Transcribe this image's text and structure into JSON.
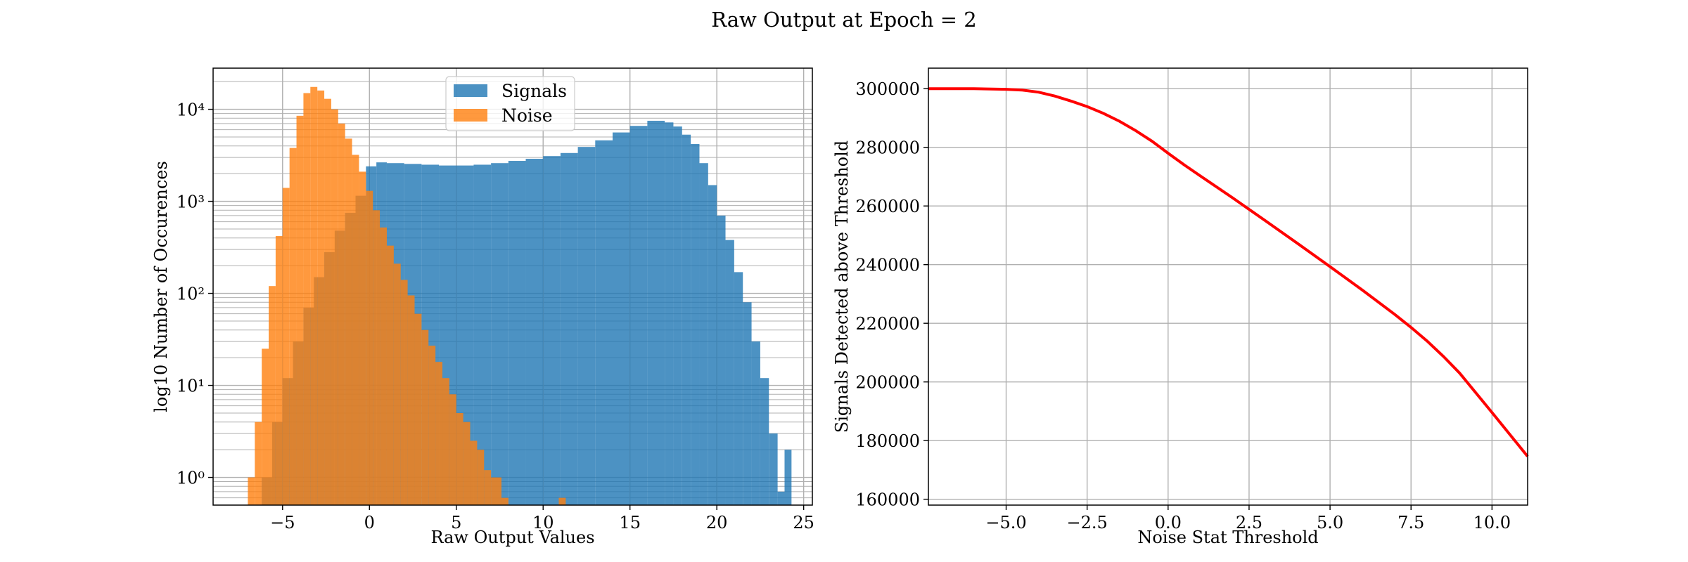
{
  "figure": {
    "title": "Raw Output at Epoch = 2"
  },
  "chart_data": [
    {
      "type": "bar",
      "subtype": "histogram",
      "yscale": "log",
      "xlabel": "Raw Output Values",
      "ylabel": "log10 Number of Occurences",
      "xlim": [
        -9,
        25.5
      ],
      "ylim": [
        0.5,
        28000
      ],
      "xticks": [
        -5,
        0,
        5,
        10,
        15,
        20,
        25
      ],
      "xtick_labels": [
        "−5",
        "0",
        "5",
        "10",
        "15",
        "20",
        "25"
      ],
      "yticks": [
        1,
        10,
        100,
        1000,
        10000
      ],
      "ytick_labels": [
        "10⁰",
        "10¹",
        "10²",
        "10³",
        "10⁴"
      ],
      "grid": true,
      "legend_position": "top-center",
      "series": [
        {
          "name": "Signals",
          "color": "#1f77b4",
          "alpha": 0.8,
          "bins": [
            [
              -6.2,
              1
            ],
            [
              -5.6,
              4
            ],
            [
              -5.0,
              12
            ],
            [
              -4.4,
              30
            ],
            [
              -3.8,
              70
            ],
            [
              -3.2,
              150
            ],
            [
              -2.6,
              280
            ],
            [
              -2.0,
              480
            ],
            [
              -1.4,
              750
            ],
            [
              -0.8,
              1150
            ],
            [
              -0.2,
              2400
            ],
            [
              0.4,
              2650
            ],
            [
              1.0,
              2600
            ],
            [
              2.0,
              2550
            ],
            [
              3.0,
              2500
            ],
            [
              4.0,
              2450
            ],
            [
              5.0,
              2450
            ],
            [
              6.0,
              2500
            ],
            [
              7.0,
              2600
            ],
            [
              8.0,
              2750
            ],
            [
              9.0,
              2900
            ],
            [
              10.0,
              3100
            ],
            [
              11.0,
              3350
            ],
            [
              12.0,
              3900
            ],
            [
              13.0,
              4600
            ],
            [
              14.0,
              5600
            ],
            [
              15.0,
              6600
            ],
            [
              16.0,
              7500
            ],
            [
              17.0,
              7200
            ],
            [
              17.5,
              6500
            ],
            [
              18.0,
              5300
            ],
            [
              18.5,
              4200
            ],
            [
              19.0,
              2600
            ],
            [
              19.5,
              1500
            ],
            [
              20.0,
              700
            ],
            [
              20.5,
              380
            ],
            [
              21.0,
              170
            ],
            [
              21.5,
              80
            ],
            [
              22.0,
              30
            ],
            [
              22.5,
              12
            ],
            [
              23.0,
              3
            ],
            [
              23.5,
              0.7
            ],
            [
              23.9,
              2
            ]
          ]
        },
        {
          "name": "Noise",
          "color": "#ff7f0e",
          "alpha": 0.8,
          "bins": [
            [
              -7.0,
              1
            ],
            [
              -6.6,
              4
            ],
            [
              -6.2,
              25
            ],
            [
              -5.8,
              120
            ],
            [
              -5.4,
              420
            ],
            [
              -5.0,
              1400
            ],
            [
              -4.6,
              3800
            ],
            [
              -4.2,
              8500
            ],
            [
              -3.8,
              15000
            ],
            [
              -3.4,
              17500
            ],
            [
              -3.0,
              16000
            ],
            [
              -2.6,
              13000
            ],
            [
              -2.2,
              10000
            ],
            [
              -1.8,
              7000
            ],
            [
              -1.4,
              4800
            ],
            [
              -1.0,
              3200
            ],
            [
              -0.6,
              2100
            ],
            [
              -0.2,
              1300
            ],
            [
              0.2,
              800
            ],
            [
              0.6,
              520
            ],
            [
              1.0,
              330
            ],
            [
              1.4,
              210
            ],
            [
              1.8,
              140
            ],
            [
              2.2,
              95
            ],
            [
              2.6,
              60
            ],
            [
              3.0,
              40
            ],
            [
              3.4,
              27
            ],
            [
              3.8,
              18
            ],
            [
              4.2,
              12
            ],
            [
              4.6,
              8
            ],
            [
              5.0,
              5
            ],
            [
              5.4,
              4
            ],
            [
              5.8,
              2.5
            ],
            [
              6.2,
              2
            ],
            [
              6.6,
              1.2
            ],
            [
              7.0,
              1
            ],
            [
              7.6,
              0.6
            ],
            [
              10.9,
              0.6
            ]
          ]
        }
      ]
    },
    {
      "type": "line",
      "xlabel": "Noise Stat Threshold",
      "ylabel": "Signals Detected above Threshold",
      "xlim": [
        -7.4,
        11.1
      ],
      "ylim": [
        158000,
        307000
      ],
      "xticks": [
        -5,
        -2.5,
        0,
        2.5,
        5,
        7.5,
        10
      ],
      "xtick_labels": [
        "−5.0",
        "−2.5",
        "0.0",
        "2.5",
        "5.0",
        "7.5",
        "10.0"
      ],
      "yticks": [
        160000,
        180000,
        200000,
        220000,
        240000,
        260000,
        280000,
        300000
      ],
      "ytick_labels": [
        "160000",
        "180000",
        "200000",
        "220000",
        "240000",
        "260000",
        "280000",
        "300000"
      ],
      "grid": true,
      "series": [
        {
          "color": "#ff0000",
          "x": [
            -7.4,
            -6,
            -5,
            -4.5,
            -4,
            -3.5,
            -3,
            -2.5,
            -2,
            -1.5,
            -1,
            -0.5,
            0,
            0.5,
            1,
            2,
            3,
            4,
            5,
            6,
            7,
            7.5,
            8,
            8.5,
            9,
            10,
            11.1
          ],
          "y": [
            300000,
            300000,
            299800,
            299500,
            298800,
            297500,
            295800,
            293900,
            291600,
            288900,
            285700,
            282100,
            278000,
            274000,
            270200,
            262700,
            255000,
            247200,
            239300,
            231300,
            223000,
            218600,
            213900,
            208700,
            203000,
            189600,
            174600
          ]
        }
      ]
    }
  ]
}
